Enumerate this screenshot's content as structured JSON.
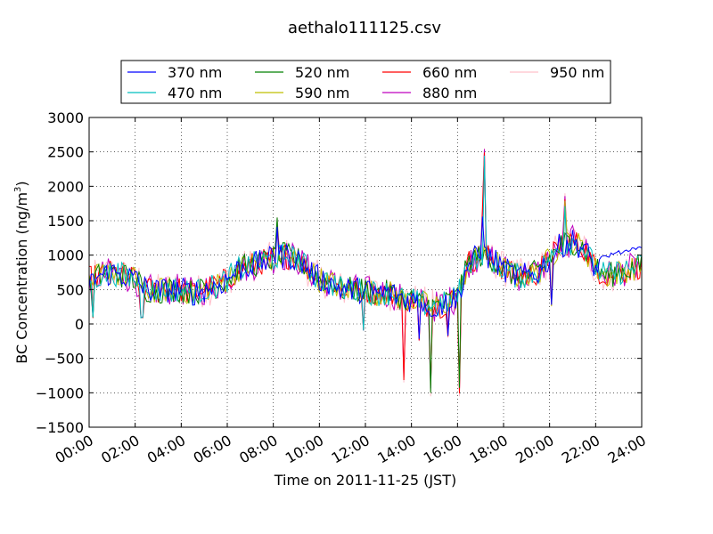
{
  "chart_data": {
    "type": "line",
    "title": "aethalo111125.csv",
    "xlabel": "Time on 2011-11-25 (JST)",
    "ylabel_main": "BC Concentration (ng/m",
    "ylabel_sup": "3",
    "ylabel_close": ")",
    "xlim": [
      0,
      24
    ],
    "ylim": [
      -1500,
      3000
    ],
    "x_ticks": [
      0,
      2,
      4,
      6,
      8,
      10,
      12,
      14,
      16,
      18,
      20,
      22,
      24
    ],
    "x_tick_labels": [
      "00:00",
      "02:00",
      "04:00",
      "06:00",
      "08:00",
      "10:00",
      "12:00",
      "14:00",
      "16:00",
      "18:00",
      "20:00",
      "22:00",
      "24:00"
    ],
    "y_ticks": [
      -1500,
      -1000,
      -500,
      0,
      500,
      1000,
      1500,
      2000,
      2500,
      3000
    ],
    "y_tick_labels": [
      "−1500",
      "−1000",
      "−500",
      "0",
      "500",
      "1000",
      "1500",
      "2000",
      "2500",
      "3000"
    ],
    "grid": true,
    "legend_position": "top-center",
    "profile": {
      "x": [
        0,
        0.5,
        1,
        1.5,
        2,
        2.5,
        3,
        3.5,
        4,
        4.5,
        5,
        5.5,
        6,
        6.5,
        7,
        7.5,
        8,
        8.5,
        9,
        9.5,
        10,
        10.5,
        11,
        11.5,
        12,
        12.5,
        13,
        13.5,
        14,
        14.5,
        15,
        15.5,
        16,
        16.5,
        17,
        17.5,
        18,
        18.5,
        19,
        19.5,
        20,
        20.5,
        21,
        21.5,
        22,
        22.5,
        23,
        23.5,
        24
      ],
      "y": [
        650,
        700,
        750,
        700,
        650,
        500,
        480,
        500,
        500,
        450,
        500,
        550,
        650,
        800,
        850,
        900,
        950,
        1000,
        950,
        800,
        650,
        600,
        500,
        500,
        480,
        450,
        450,
        400,
        350,
        300,
        250,
        300,
        400,
        900,
        1000,
        950,
        800,
        700,
        700,
        750,
        950,
        1150,
        1200,
        1100,
        800,
        700,
        750,
        800,
        850
      ]
    },
    "spikes": [
      {
        "x": 0.15,
        "y": 100
      },
      {
        "x": 2.3,
        "y": 100
      },
      {
        "x": 8.2,
        "y": 1550
      },
      {
        "x": 11.95,
        "y": -100
      },
      {
        "x": 13.7,
        "y": -850
      },
      {
        "x": 14.3,
        "y": -250
      },
      {
        "x": 14.8,
        "y": -1050
      },
      {
        "x": 15.6,
        "y": -200
      },
      {
        "x": 16.1,
        "y": -1050
      },
      {
        "x": 17.2,
        "y": 2550
      },
      {
        "x": 17.1,
        "y": 1800
      },
      {
        "x": 20.1,
        "y": 300
      },
      {
        "x": 20.7,
        "y": 1900
      }
    ],
    "series": [
      {
        "name": "370 nm",
        "color": "#0000ff"
      },
      {
        "name": "470 nm",
        "color": "#00bfbf"
      },
      {
        "name": "520 nm",
        "color": "#008000"
      },
      {
        "name": "590 nm",
        "color": "#bfbf00"
      },
      {
        "name": "660 nm",
        "color": "#ff0000"
      },
      {
        "name": "880 nm",
        "color": "#bf00bf"
      },
      {
        "name": "950 nm",
        "color": "#ffc0cb"
      }
    ]
  }
}
